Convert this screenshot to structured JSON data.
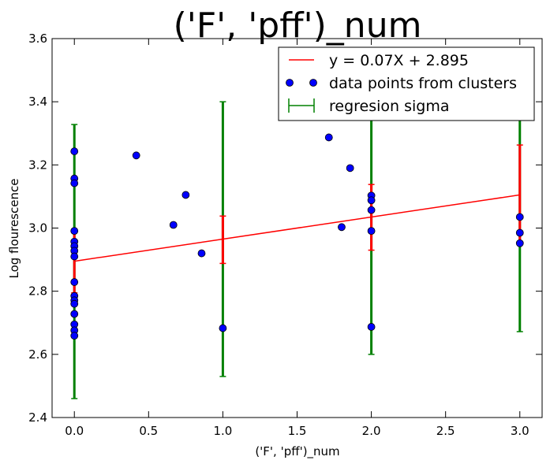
{
  "chart_data": {
    "type": "scatter",
    "title": "('F', 'pff')_num",
    "xlabel": "('F', 'pff')_num",
    "ylabel": "Log flourescence",
    "xlim": [
      -0.15,
      3.15
    ],
    "ylim": [
      2.4,
      3.6
    ],
    "xticks": [
      "0.0",
      "0.5",
      "1.0",
      "1.5",
      "2.0",
      "2.5",
      "3.0"
    ],
    "xtick_values": [
      0.0,
      0.5,
      1.0,
      1.5,
      2.0,
      2.5,
      3.0
    ],
    "yticks": [
      "2.4",
      "2.6",
      "2.8",
      "3.0",
      "3.2",
      "3.4",
      "3.6"
    ],
    "ytick_values": [
      2.4,
      2.6,
      2.8,
      3.0,
      3.2,
      3.4,
      3.6
    ],
    "grid": false,
    "legend_position": "top-right",
    "regression": {
      "label": "y = 0.07X + 2.895",
      "slope": 0.07,
      "intercept": 2.895,
      "x_range": [
        0,
        3
      ],
      "color": "#ff0000"
    },
    "points": {
      "label": "data points from clusters",
      "color": "#0000ff",
      "data": [
        [
          0,
          3.243
        ],
        [
          0,
          3.157
        ],
        [
          0,
          3.142
        ],
        [
          0,
          2.991
        ],
        [
          0,
          2.957
        ],
        [
          0,
          2.943
        ],
        [
          0,
          2.928
        ],
        [
          0,
          2.91
        ],
        [
          0,
          2.829
        ],
        [
          0,
          2.785
        ],
        [
          0,
          2.771
        ],
        [
          0,
          2.76
        ],
        [
          0,
          2.728
        ],
        [
          0,
          2.695
        ],
        [
          0,
          2.676
        ],
        [
          0,
          2.659
        ],
        [
          0.417,
          3.23
        ],
        [
          0.667,
          3.01
        ],
        [
          0.75,
          3.105
        ],
        [
          0.857,
          2.92
        ],
        [
          1,
          2.683
        ],
        [
          1.714,
          3.287
        ],
        [
          1.8,
          3.003
        ],
        [
          1.857,
          3.19
        ],
        [
          2,
          3.103
        ],
        [
          2,
          3.088
        ],
        [
          2,
          3.057
        ],
        [
          2,
          2.991
        ],
        [
          2,
          2.687
        ],
        [
          3,
          3.035
        ],
        [
          3,
          2.985
        ],
        [
          3,
          2.952
        ]
      ]
    },
    "sigma_bars": {
      "label": "regresion sigma",
      "color": "#008000",
      "data": [
        {
          "x": 0,
          "low": 2.46,
          "high": 3.328
        },
        {
          "x": 1,
          "low": 2.53,
          "high": 3.4
        },
        {
          "x": 2,
          "low": 2.6,
          "high": 3.47
        },
        {
          "x": 3,
          "low": 2.672,
          "high": 3.54
        }
      ]
    },
    "regression_error_bars": {
      "color": "#ff0000",
      "data": [
        {
          "x": 0,
          "low": 2.795,
          "high": 2.995
        },
        {
          "x": 1,
          "low": 2.888,
          "high": 3.038
        },
        {
          "x": 2,
          "low": 2.93,
          "high": 3.138
        },
        {
          "x": 3,
          "low": 2.953,
          "high": 3.263
        }
      ]
    }
  }
}
